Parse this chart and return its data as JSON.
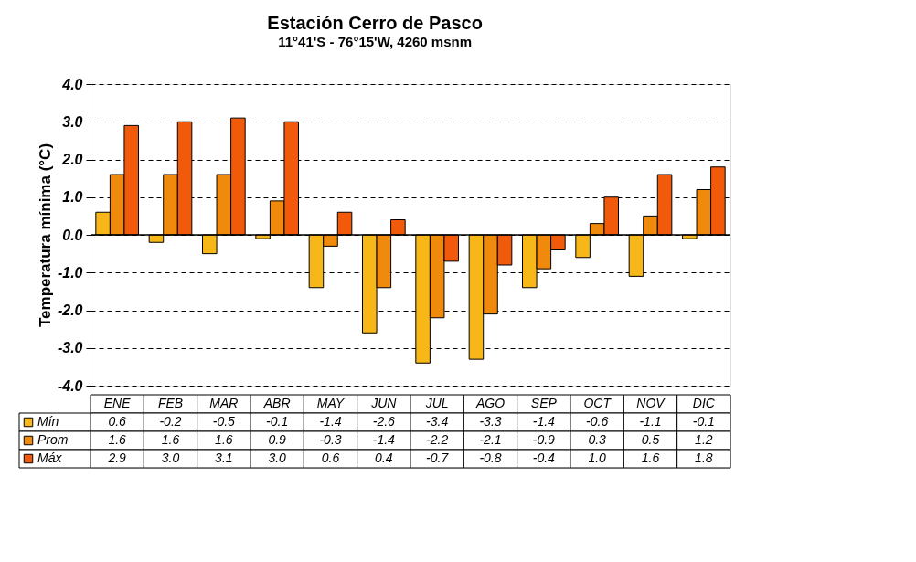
{
  "chart_data": {
    "type": "bar",
    "title": "Estación Cerro de Pasco",
    "subtitle": "11°41'S - 76°15'W, 4260 msnm",
    "ylabel": "Temperatura mínima (°C)",
    "categories": [
      "ENE",
      "FEB",
      "MAR",
      "ABR",
      "MAY",
      "JUN",
      "JUL",
      "AGO",
      "SEP",
      "OCT",
      "NOV",
      "DIC"
    ],
    "series": [
      {
        "name": "Mín",
        "color": "#f7b718",
        "values": [
          0.6,
          -0.2,
          -0.5,
          -0.1,
          -1.4,
          -2.6,
          -3.4,
          -3.3,
          -1.4,
          -0.6,
          -1.1,
          -0.1
        ],
        "value_labels": [
          "0.6",
          "-0.2",
          "-0.5",
          "-0.1",
          "-1.4",
          "-2.6",
          "-3.4",
          "-3.3",
          "-1.4",
          "-0.6",
          "-1.1",
          "-0.1"
        ]
      },
      {
        "name": "Prom",
        "color": "#f08a0c",
        "values": [
          1.6,
          1.6,
          1.6,
          0.9,
          -0.3,
          -1.4,
          -2.2,
          -2.1,
          -0.9,
          0.3,
          0.5,
          1.2
        ],
        "value_labels": [
          "1.6",
          "1.6",
          "1.6",
          "0.9",
          "-0.3",
          "-1.4",
          "-2.2",
          "-2.1",
          "-0.9",
          "0.3",
          "0.5",
          "1.2"
        ]
      },
      {
        "name": "Máx",
        "color": "#f05a0a",
        "values": [
          2.9,
          3.0,
          3.1,
          3.0,
          0.6,
          0.4,
          -0.7,
          -0.8,
          -0.4,
          1.0,
          1.6,
          1.8
        ],
        "value_labels": [
          "2.9",
          "3.0",
          "3.1",
          "3.0",
          "0.6",
          "0.4",
          "-0.7",
          "-0.8",
          "-0.4",
          "1.0",
          "1.6",
          "1.8"
        ]
      }
    ],
    "ylim": [
      -4,
      4
    ],
    "yticks": [
      {
        "value": -4,
        "label": "-4.0"
      },
      {
        "value": -3,
        "label": "-3.0"
      },
      {
        "value": -2,
        "label": "-2.0"
      },
      {
        "value": -1,
        "label": "-1.0"
      },
      {
        "value": 0,
        "label": "0.0"
      },
      {
        "value": 1,
        "label": "1.0"
      },
      {
        "value": 2,
        "label": "2.0"
      },
      {
        "value": 3,
        "label": "3.0"
      },
      {
        "value": 4,
        "label": "4.0"
      }
    ],
    "ref_lines": [
      {
        "axis": "y",
        "value": 0,
        "color": "#000000",
        "line_style": "solid"
      }
    ],
    "grid": "y",
    "legend": "bottom left"
  }
}
